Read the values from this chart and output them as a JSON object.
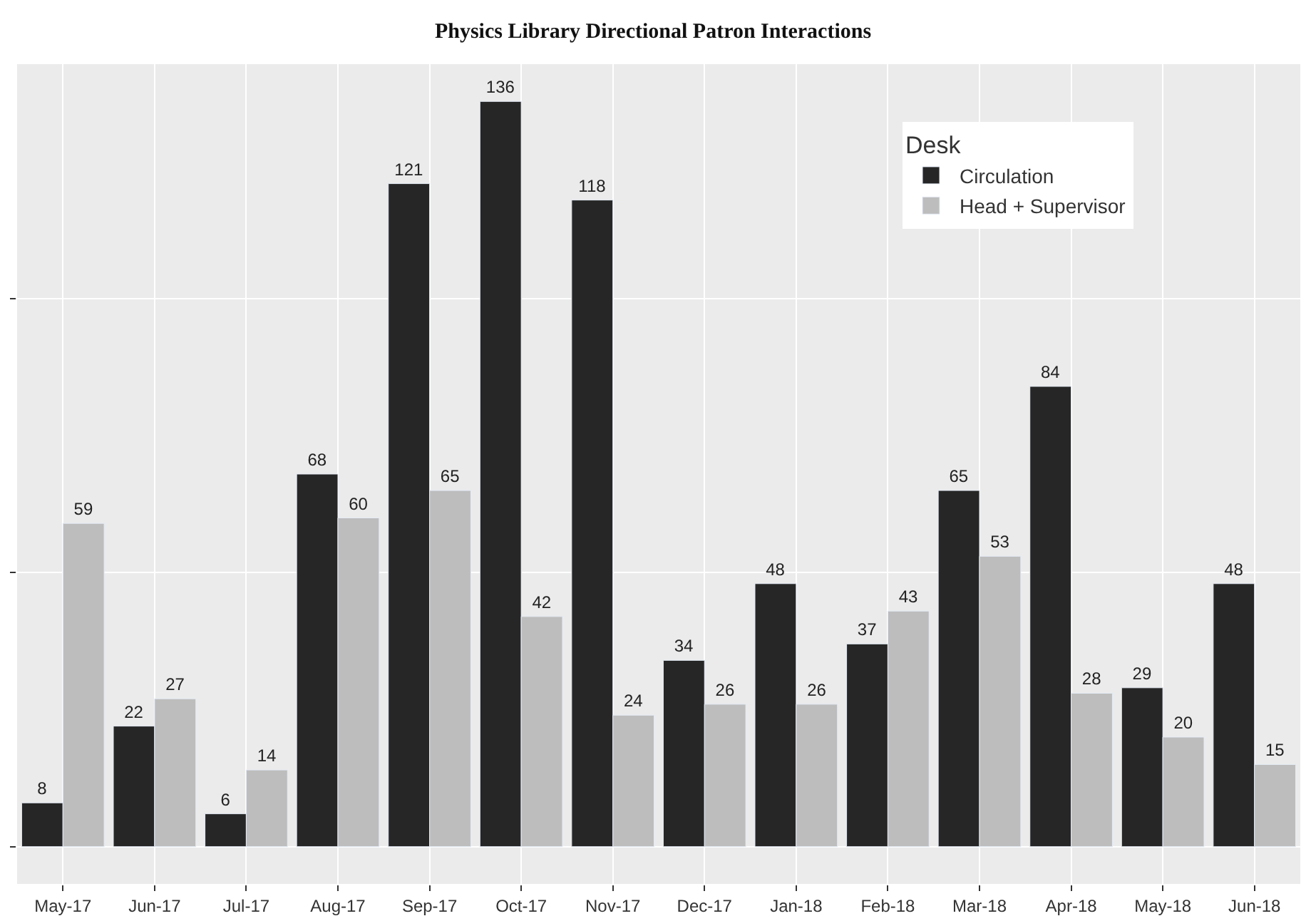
{
  "chart_data": {
    "type": "bar",
    "title": "Physics Library Directional Patron Interactions",
    "legend_title": "Desk",
    "categories": [
      "May-17",
      "Jun-17",
      "Jul-17",
      "Aug-17",
      "Sep-17",
      "Oct-17",
      "Nov-17",
      "Dec-17",
      "Jan-18",
      "Feb-18",
      "Mar-18",
      "Apr-18",
      "May-18",
      "Jun-18"
    ],
    "series": [
      {
        "name": "Circulation",
        "color": "#262626",
        "values": [
          8,
          22,
          6,
          68,
          121,
          136,
          118,
          34,
          48,
          37,
          65,
          84,
          29,
          48
        ]
      },
      {
        "name": "Head + Supervisor",
        "color": "#bdbdbd",
        "values": [
          59,
          27,
          14,
          60,
          65,
          42,
          24,
          26,
          26,
          43,
          53,
          28,
          20,
          15
        ]
      }
    ],
    "ylim": [
      -6.8,
      142.8
    ],
    "yticks": [
      {
        "value": 0,
        "label": null
      },
      {
        "value": 50,
        "label": null
      },
      {
        "value": 100,
        "label": null
      }
    ],
    "tick_labels": "x",
    "grid": true,
    "legend": "top right",
    "data_labels": true
  }
}
